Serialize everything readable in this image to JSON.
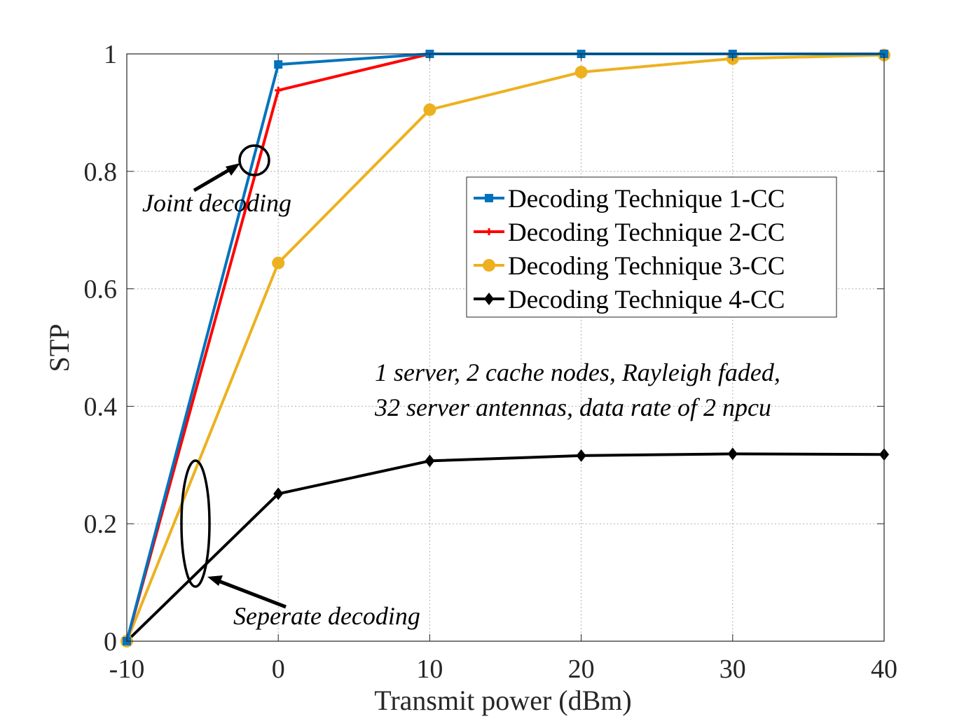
{
  "chart_data": {
    "type": "line",
    "xlabel": "Transmit power (dBm)",
    "ylabel": "STP",
    "xlim": [
      -10,
      40
    ],
    "ylim": [
      0,
      1
    ],
    "xticks": [
      -10,
      0,
      10,
      20,
      30,
      40
    ],
    "yticks": [
      0,
      0.2,
      0.4,
      0.6,
      0.8,
      1
    ],
    "xtick_labels": [
      "-10",
      "0",
      "10",
      "20",
      "30",
      "40"
    ],
    "ytick_labels": [
      "0",
      "0.2",
      "0.4",
      "0.6",
      "0.8",
      "1"
    ],
    "grid": true,
    "legend_position": "upper-right",
    "x": [
      -10,
      0,
      10,
      20,
      30,
      40
    ],
    "series": [
      {
        "name": "Decoding Technique 1-CC",
        "color": "#0072BD",
        "marker": "square",
        "values": [
          0,
          0.982,
          1.0,
          1.0,
          1.0,
          1.0
        ]
      },
      {
        "name": "Decoding Technique 2-CC",
        "color": "#FF0000",
        "marker": "plus",
        "values": [
          0,
          0.938,
          1.0,
          1.0,
          1.0,
          1.0
        ]
      },
      {
        "name": "Decoding Technique 3-CC",
        "color": "#EDB120",
        "marker": "circle",
        "values": [
          0,
          0.644,
          0.905,
          0.969,
          0.992,
          0.998
        ]
      },
      {
        "name": "Decoding Technique 4-CC",
        "color": "#000000",
        "marker": "diamond",
        "values": [
          0,
          0.251,
          0.307,
          0.316,
          0.319,
          0.318
        ]
      }
    ],
    "annotations": {
      "joint": "Joint decoding",
      "separate": "Seperate decoding",
      "params_line1": "1 server, 2 cache nodes, Rayleigh faded,",
      "params_line2": "32 server antennas, data rate of 2 npcu"
    }
  }
}
